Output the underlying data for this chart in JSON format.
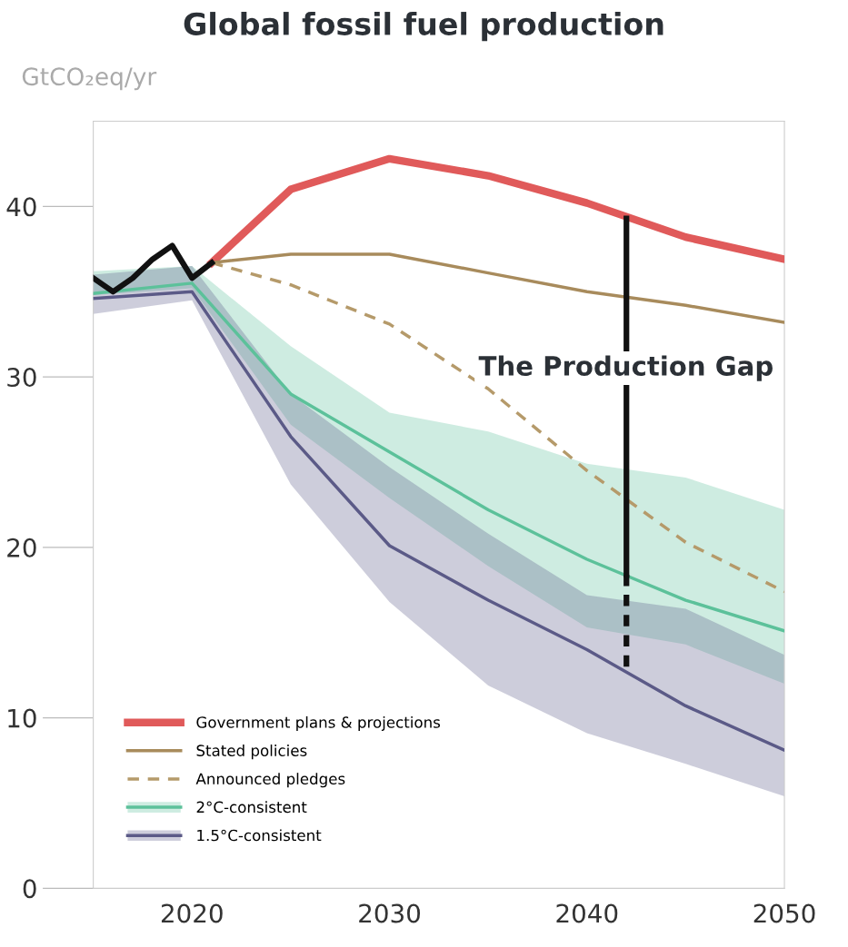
{
  "chart_data": {
    "type": "line",
    "title": "Global fossil fuel production",
    "ylabel": "GtCO₂eq/yr",
    "xlim": [
      2015,
      2050
    ],
    "xticks": [
      2020,
      2030,
      2040,
      2050
    ],
    "ylim": [
      0,
      45
    ],
    "yticks": [
      0,
      10,
      20,
      30,
      40
    ],
    "grid": false,
    "legend": "bottom left",
    "series": [
      {
        "color": "#111111",
        "x": [
          2015,
          2016,
          2017,
          2018,
          2019,
          2020,
          2021
        ],
        "values": [
          35.8,
          35.0,
          35.8,
          36.9,
          37.7,
          35.8,
          36.7
        ]
      },
      {
        "name": "Government plans & projections",
        "color": "#e05a5a",
        "x": [
          2021,
          2025,
          2030,
          2035,
          2040,
          2045,
          2050
        ],
        "values": [
          36.7,
          41.0,
          42.8,
          41.8,
          40.2,
          38.2,
          36.9
        ]
      },
      {
        "name": "Stated policies",
        "color": "#a88b5c",
        "x": [
          2021,
          2025,
          2030,
          2035,
          2040,
          2045,
          2050
        ],
        "values": [
          36.7,
          37.2,
          37.2,
          36.1,
          35.0,
          34.2,
          33.2
        ]
      },
      {
        "name": "Announced pledges",
        "color": "#b59a6a",
        "line_style": "dashed",
        "x": [
          2021,
          2025,
          2030,
          2035,
          2040,
          2045,
          2050
        ],
        "values": [
          36.7,
          35.4,
          33.1,
          29.3,
          24.5,
          20.3,
          17.4
        ]
      },
      {
        "name": "2°C-consistent",
        "color": "#5cc19a",
        "x": [
          2015,
          2020,
          2025,
          2030,
          2035,
          2040,
          2045,
          2050
        ],
        "values": [
          34.9,
          35.5,
          29.0,
          25.6,
          22.2,
          19.3,
          16.9,
          15.1
        ],
        "lower": [
          34.8,
          35.2,
          27.2,
          22.9,
          18.9,
          15.3,
          14.3,
          12.0
        ],
        "upper": [
          36.2,
          36.5,
          31.8,
          27.9,
          26.8,
          24.9,
          24.1,
          22.2
        ]
      },
      {
        "name": "1.5°C-consistent",
        "color": "#5b5a87",
        "x": [
          2015,
          2020,
          2025,
          2030,
          2035,
          2040,
          2045,
          2050
        ],
        "values": [
          34.6,
          35.0,
          26.5,
          20.1,
          16.9,
          14.0,
          10.7,
          8.1
        ],
        "lower": [
          33.7,
          34.5,
          23.7,
          16.8,
          11.9,
          9.1,
          7.3,
          5.4
        ],
        "upper": [
          36.0,
          36.5,
          29.0,
          24.7,
          20.8,
          17.2,
          16.4,
          13.7
        ]
      },
      {
        "color": "#111111",
        "x": [
          2042,
          2042
        ],
        "values": [
          39.3,
          18.4
        ]
      },
      {
        "color": "#111111",
        "line_style": "dashed",
        "x": [
          2042,
          2042
        ],
        "values": [
          18.4,
          12.7
        ]
      }
    ],
    "annotations": [
      "The Production Gap"
    ]
  }
}
